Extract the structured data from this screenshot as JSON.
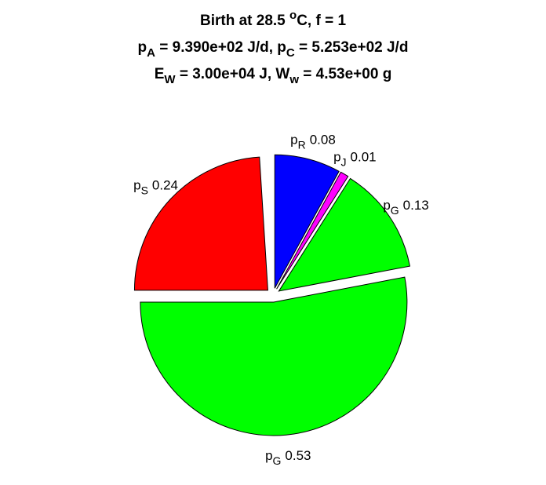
{
  "chart_data": {
    "type": "pie",
    "title": [
      [
        {
          "text": "Birth at 28.5 "
        },
        {
          "text": "o",
          "script": "sup"
        },
        {
          "text": "C, f = 1"
        }
      ],
      [
        {
          "text": "p"
        },
        {
          "text": "A",
          "script": "sub"
        },
        {
          "text": " = 9.390e+02 J/d, p"
        },
        {
          "text": "C",
          "script": "sub"
        },
        {
          "text": " = 5.253e+02 J/d"
        }
      ],
      [
        {
          "text": "E"
        },
        {
          "text": "W",
          "script": "sub"
        },
        {
          "text": " = 3.00e+04 J, W"
        },
        {
          "text": "w",
          "script": "sub"
        },
        {
          "text": " = 4.53e+00 g"
        }
      ]
    ],
    "labels": [
      {
        "text": "p",
        "sub": "R"
      },
      {
        "text": "p",
        "sub": "J"
      },
      {
        "text": "p",
        "sub": "G"
      },
      {
        "text": "p",
        "sub": "G"
      },
      {
        "text": "p",
        "sub": "S"
      }
    ],
    "values": [
      0.08,
      0.01,
      0.13,
      0.53,
      0.24
    ],
    "colors": [
      "#0000ff",
      "#ff00ff",
      "#00ff00",
      "#00ff00",
      "#ff0000"
    ]
  }
}
